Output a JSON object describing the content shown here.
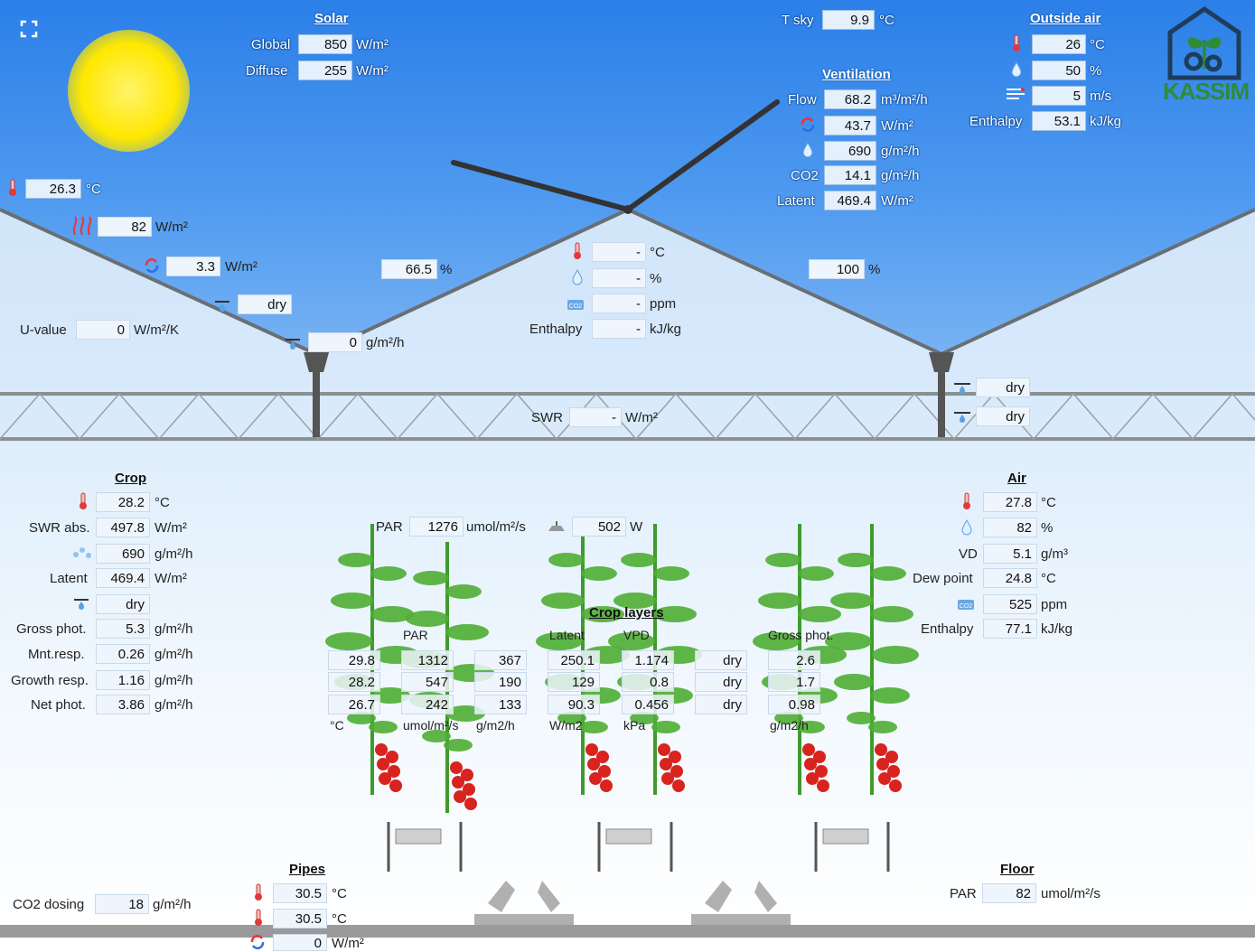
{
  "logo_text": "KASSIM",
  "colors": {
    "sky_top": "#2b7fe8",
    "sky_bottom": "#8fc0f5",
    "roof": "#6a6f73",
    "plant": "#3e9b2c",
    "tomato": "#d8231e",
    "logo": "#2e8b3a"
  },
  "solar": {
    "title": "Solar",
    "global_label": "Global",
    "global_value": "850",
    "global_unit": "W/m²",
    "diffuse_label": "Diffuse",
    "diffuse_value": "255",
    "diffuse_unit": "W/m²"
  },
  "tsky": {
    "label": "T sky",
    "value": "9.9",
    "unit": "°C"
  },
  "outside_air": {
    "title": "Outside air",
    "temp": "26",
    "temp_unit": "°C",
    "rh": "50",
    "rh_unit": "%",
    "wind": "5",
    "wind_unit": "m/s",
    "enthalpy_label": "Enthalpy",
    "enthalpy": "53.1",
    "enthalpy_unit": "kJ/kg"
  },
  "ventilation": {
    "title": "Ventilation",
    "flow_label": "Flow",
    "flow": "68.2",
    "flow_unit": "m³/m²/h",
    "heat": "43.7",
    "heat_unit": "W/m²",
    "vapour": "690",
    "vapour_unit": "g/m²/h",
    "co2_label": "CO2",
    "co2": "14.1",
    "co2_unit": "g/m²/h",
    "latent_label": "Latent",
    "latent": "469.4",
    "latent_unit": "W/m²"
  },
  "roof": {
    "temp": "26.3",
    "temp_unit": "°C",
    "radiation": "82",
    "radiation_unit": "W/m²",
    "convection": "3.3",
    "convection_unit": "W/m²",
    "condensation": "dry",
    "uvalue_label": "U-value",
    "uvalue": "0",
    "uvalue_unit": "W/m²/K",
    "drip": "0",
    "drip_unit": "g/m²/h",
    "left_vent": "66.5",
    "left_vent_unit": "%",
    "right_vent": "100",
    "right_vent_unit": "%"
  },
  "attic": {
    "temp": "-",
    "temp_unit": "°C",
    "rh": "-",
    "rh_unit": "%",
    "co2": "-",
    "co2_unit": "ppm",
    "enthalpy_label": "Enthalpy",
    "enthalpy": "-",
    "enthalpy_unit": "kJ/kg"
  },
  "screen": {
    "swr_label": "SWR",
    "swr": "-",
    "swr_unit": "W/m²",
    "cond1": "dry",
    "cond2": "dry"
  },
  "crop": {
    "title": "Crop",
    "temp": "28.2",
    "temp_unit": "°C",
    "swr_label": "SWR abs.",
    "swr": "497.8",
    "swr_unit": "W/m²",
    "transp": "690",
    "transp_unit": "g/m²/h",
    "latent_label": "Latent",
    "latent": "469.4",
    "latent_unit": "W/m²",
    "cond": "dry",
    "gross_label": "Gross phot.",
    "gross": "5.3",
    "gross_unit": "g/m²/h",
    "mnt_label": "Mnt.resp.",
    "mnt": "0.26",
    "mnt_unit": "g/m²/h",
    "growth_label": "Growth resp.",
    "growth": "1.16",
    "growth_unit": "g/m²/h",
    "net_label": "Net phot.",
    "net": "3.86",
    "net_unit": "g/m²/h"
  },
  "crop_top": {
    "par_label": "PAR",
    "par": "1276",
    "par_unit": "umol/m²/s",
    "lamp": "502",
    "lamp_unit": "W"
  },
  "crop_layers": {
    "title": "Crop layers",
    "col_labels": [
      "",
      "PAR",
      "",
      "Latent",
      "VPD",
      "",
      "Gross phot."
    ],
    "units": [
      "°C",
      "umol/m²/s",
      "g/m2/h",
      "W/m2",
      "kPa",
      "",
      "g/m2/h"
    ],
    "rows": [
      [
        "29.8",
        "1312",
        "367",
        "250.1",
        "1.174",
        "dry",
        "2.6"
      ],
      [
        "28.2",
        "547",
        "190",
        "129",
        "0.8",
        "dry",
        "1.7"
      ],
      [
        "26.7",
        "242",
        "133",
        "90.3",
        "0.456",
        "dry",
        "0.98"
      ]
    ]
  },
  "air": {
    "title": "Air",
    "temp": "27.8",
    "temp_unit": "°C",
    "rh": "82",
    "rh_unit": "%",
    "vd_label": "VD",
    "vd": "5.1",
    "vd_unit": "g/m³",
    "dew_label": "Dew point",
    "dew": "24.8",
    "dew_unit": "°C",
    "co2": "525",
    "co2_unit": "ppm",
    "enthalpy_label": "Enthalpy",
    "enthalpy": "77.1",
    "enthalpy_unit": "kJ/kg"
  },
  "co2dosing": {
    "label": "CO2 dosing",
    "value": "18",
    "unit": "g/m²/h"
  },
  "pipes": {
    "title": "Pipes",
    "t1": "30.5",
    "t1_unit": "°C",
    "t2": "30.5",
    "t2_unit": "°C",
    "heat": "0",
    "heat_unit": "W/m²"
  },
  "floor": {
    "title": "Floor",
    "par_label": "PAR",
    "par": "82",
    "par_unit": "umol/m²/s"
  }
}
